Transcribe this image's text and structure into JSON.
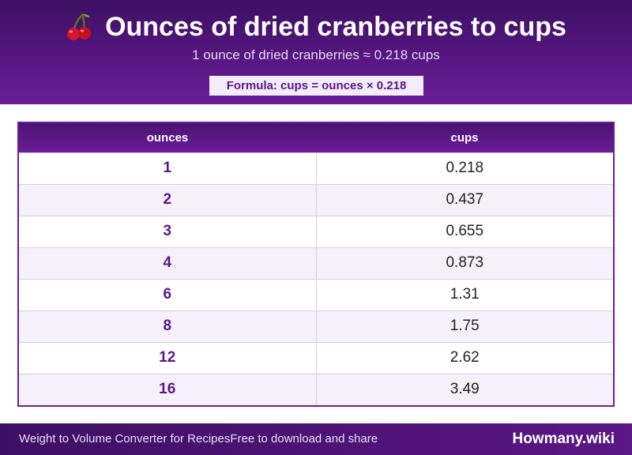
{
  "header": {
    "icon": "cherry-icon",
    "title": "Ounces of dried cranberries to cups",
    "subtitle": "1 ounce of dried cranberries ≈ 0.218 cups",
    "formula": "Formula: cups = ounces × 0.218"
  },
  "table": {
    "columns": [
      "ounces",
      "cups"
    ],
    "rows": [
      {
        "ounces": "1",
        "cups": "0.218"
      },
      {
        "ounces": "2",
        "cups": "0.437"
      },
      {
        "ounces": "3",
        "cups": "0.655"
      },
      {
        "ounces": "4",
        "cups": "0.873"
      },
      {
        "ounces": "6",
        "cups": "1.31"
      },
      {
        "ounces": "8",
        "cups": "1.75"
      },
      {
        "ounces": "12",
        "cups": "2.62"
      },
      {
        "ounces": "16",
        "cups": "3.49"
      }
    ]
  },
  "footer": {
    "left_text": "Weight to Volume Converter for RecipesFree to download and share",
    "brand": "Howmany.wiki"
  },
  "colors": {
    "accent": "#6a1d98",
    "header_dark": "#3d0f63",
    "row_alt": "#f5f0fa"
  }
}
